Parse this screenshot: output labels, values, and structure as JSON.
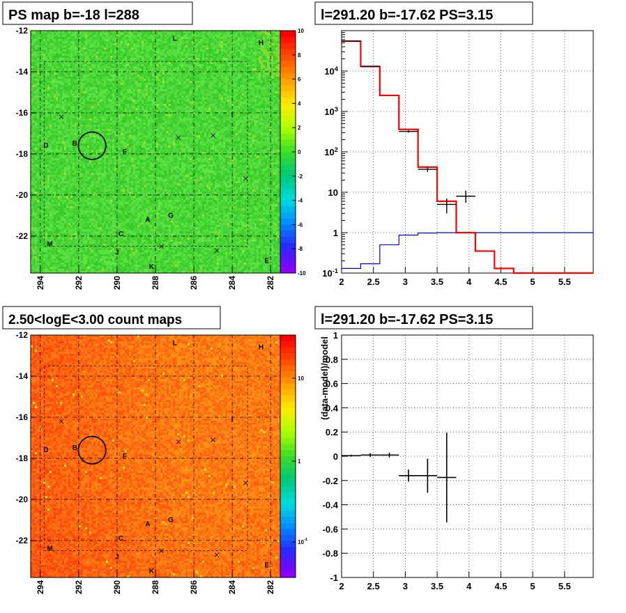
{
  "colors": {
    "map_green": "#3ed23e",
    "map_orange": "#f07820",
    "data_black": "#000000",
    "model_red": "#ff0000",
    "bkg_blue": "#0000cc"
  },
  "chart_data": [
    {
      "id": "ps_map",
      "type": "heatmap",
      "title": "PS map b=-18 l=288",
      "xlim": [
        294.5,
        281.5
      ],
      "ylim": [
        -23.8,
        -12
      ],
      "x_ticks": [
        "294",
        "292",
        "290",
        "288",
        "286",
        "284",
        "282"
      ],
      "y_ticks": [
        "-12",
        "-14",
        "-16",
        "-18",
        "-20",
        "-22"
      ],
      "grid": true,
      "colorbar": {
        "min": -10,
        "max": 10,
        "ticks": [
          "10",
          "8",
          "6",
          "4",
          "2",
          "0",
          "-2",
          "-4",
          "-6",
          "-8",
          "-10"
        ]
      },
      "labels": [
        {
          "text": "L",
          "x": 287.0,
          "y": -12.5
        },
        {
          "text": "H",
          "x": 282.5,
          "y": -12.7
        },
        {
          "text": "I",
          "x": 284.0,
          "y": -16.2
        },
        {
          "text": "D",
          "x": 293.7,
          "y": -17.7
        },
        {
          "text": "B",
          "x": 292.2,
          "y": -17.6
        },
        {
          "text": "F",
          "x": 289.6,
          "y": -18.0
        },
        {
          "text": "A",
          "x": 288.4,
          "y": -21.3
        },
        {
          "text": "G",
          "x": 287.2,
          "y": -21.1
        },
        {
          "text": "C",
          "x": 289.8,
          "y": -22.0
        },
        {
          "text": "M",
          "x": 293.5,
          "y": -22.5
        },
        {
          "text": "J",
          "x": 290.0,
          "y": -22.9
        },
        {
          "text": "K",
          "x": 288.2,
          "y": -23.6
        },
        {
          "text": "E",
          "x": 282.2,
          "y": -23.3
        }
      ],
      "crosses": [
        {
          "x": 292.9,
          "y": -16.2
        },
        {
          "x": 286.8,
          "y": -17.2
        },
        {
          "x": 285.0,
          "y": -17.1
        },
        {
          "x": 283.3,
          "y": -19.2
        },
        {
          "x": 287.7,
          "y": -22.5
        },
        {
          "x": 284.8,
          "y": -22.7
        }
      ],
      "circle": {
        "x": 291.3,
        "y": -17.6,
        "r": 0.55
      }
    },
    {
      "id": "spectrum",
      "type": "line",
      "title": "l=291.20 b=-17.62 PS=3.15",
      "xlim": [
        2,
        5.95
      ],
      "ylim": [
        0.1,
        100000
      ],
      "log_y": true,
      "x_ticks": [
        "2",
        "2.5",
        "3",
        "3.5",
        "4",
        "4.5",
        "5",
        "5.5"
      ],
      "y_ticks": [
        "10^{4}",
        "10^{3}",
        "10^{2}",
        "10",
        "1",
        "10^{-1}"
      ],
      "grid": true,
      "series": [
        {
          "role": "model",
          "edges": [
            2.0,
            2.3,
            2.6,
            2.9,
            3.2,
            3.5,
            3.8,
            4.1,
            4.4,
            4.7,
            5.0,
            5.3,
            5.6,
            5.95
          ],
          "values": [
            55000,
            13000,
            2500,
            360,
            42,
            6,
            1.0,
            0.35,
            0.13,
            0.1,
            0.1,
            0.1,
            0.1
          ]
        },
        {
          "role": "background",
          "edges": [
            2.0,
            2.3,
            2.6,
            2.9,
            3.2,
            3.5,
            3.8,
            4.1,
            4.4,
            4.7,
            5.0,
            5.3,
            5.6,
            5.95
          ],
          "values": [
            0.13,
            0.17,
            0.5,
            0.87,
            0.98,
            1.0,
            1.0,
            1.0,
            1.0,
            1.0,
            1.0,
            1.0,
            1.0
          ]
        },
        {
          "role": "data",
          "points": [
            {
              "x": 2.15,
              "y": 55000,
              "xerr": 0.15,
              "ylo": 54000,
              "yhi": 56000
            },
            {
              "x": 2.45,
              "y": 13000,
              "xerr": 0.15,
              "ylo": 12700,
              "yhi": 13300
            },
            {
              "x": 3.05,
              "y": 320,
              "xerr": 0.15,
              "ylo": 300,
              "yhi": 340
            },
            {
              "x": 3.35,
              "y": 37,
              "xerr": 0.15,
              "ylo": 32,
              "yhi": 43
            },
            {
              "x": 3.65,
              "y": 5,
              "xerr": 0.15,
              "ylo": 3,
              "yhi": 7
            },
            {
              "x": 3.95,
              "y": 8,
              "xerr": 0.15,
              "ylo": 5.5,
              "yhi": 11
            }
          ]
        }
      ]
    },
    {
      "id": "count_map",
      "type": "heatmap",
      "title": "2.50<logE<3.00 count maps",
      "xlim": [
        294.5,
        281.5
      ],
      "ylim": [
        -23.8,
        -12
      ],
      "x_ticks": [
        "294",
        "292",
        "290",
        "288",
        "286",
        "284",
        "282"
      ],
      "y_ticks": [
        "-12",
        "-14",
        "-16",
        "-18",
        "-20",
        "-22"
      ],
      "grid": true,
      "colorbar": {
        "log": true,
        "min": 0.05,
        "max": 40,
        "ticks": [
          "10",
          "1",
          "10^{-1}"
        ]
      },
      "labels": [
        {
          "text": "L",
          "x": 287.0,
          "y": -12.5
        },
        {
          "text": "H",
          "x": 282.5,
          "y": -12.7
        },
        {
          "text": "I",
          "x": 284.0,
          "y": -16.2
        },
        {
          "text": "D",
          "x": 293.7,
          "y": -17.7
        },
        {
          "text": "B",
          "x": 292.2,
          "y": -17.6
        },
        {
          "text": "F",
          "x": 289.6,
          "y": -18.0
        },
        {
          "text": "A",
          "x": 288.4,
          "y": -21.3
        },
        {
          "text": "G",
          "x": 287.2,
          "y": -21.1
        },
        {
          "text": "C",
          "x": 289.8,
          "y": -22.0
        },
        {
          "text": "M",
          "x": 293.5,
          "y": -22.5
        },
        {
          "text": "J",
          "x": 290.0,
          "y": -22.9
        },
        {
          "text": "K",
          "x": 288.2,
          "y": -23.6
        },
        {
          "text": "E",
          "x": 282.2,
          "y": -23.3
        }
      ],
      "crosses": [
        {
          "x": 292.9,
          "y": -16.2
        },
        {
          "x": 286.8,
          "y": -17.2
        },
        {
          "x": 285.0,
          "y": -17.1
        },
        {
          "x": 283.3,
          "y": -19.2
        },
        {
          "x": 287.7,
          "y": -22.5
        },
        {
          "x": 284.8,
          "y": -22.7
        }
      ],
      "circle": {
        "x": 291.3,
        "y": -17.6,
        "r": 0.55
      }
    },
    {
      "id": "residuals",
      "type": "scatter",
      "title": "l=291.20 b=-17.62 PS=3.15",
      "ylabel": "(data-model)/model",
      "xlim": [
        2,
        5.95
      ],
      "ylim": [
        -1,
        1
      ],
      "x_ticks": [
        "2",
        "2.5",
        "3",
        "3.5",
        "4",
        "4.5",
        "5",
        "5.5"
      ],
      "y_ticks": [
        "1",
        "0.8",
        "0.6",
        "0.4",
        "0.2",
        "0",
        "-0.2",
        "-0.4",
        "-0.6",
        "-0.8",
        "-1"
      ],
      "grid": true,
      "points": [
        {
          "x": 2.15,
          "y": 0.005,
          "xerr": 0.15,
          "yerr": 0.008
        },
        {
          "x": 2.45,
          "y": 0.01,
          "xerr": 0.15,
          "yerr": 0.015
        },
        {
          "x": 2.75,
          "y": 0.01,
          "xerr": 0.15,
          "yerr": 0.02
        },
        {
          "x": 3.05,
          "y": -0.16,
          "xerr": 0.15,
          "yerr": 0.05
        },
        {
          "x": 3.35,
          "y": -0.16,
          "xerr": 0.15,
          "yerr": 0.14
        },
        {
          "x": 3.65,
          "y": -0.175,
          "xerr": 0.15,
          "yerr": 0.37
        }
      ]
    }
  ]
}
